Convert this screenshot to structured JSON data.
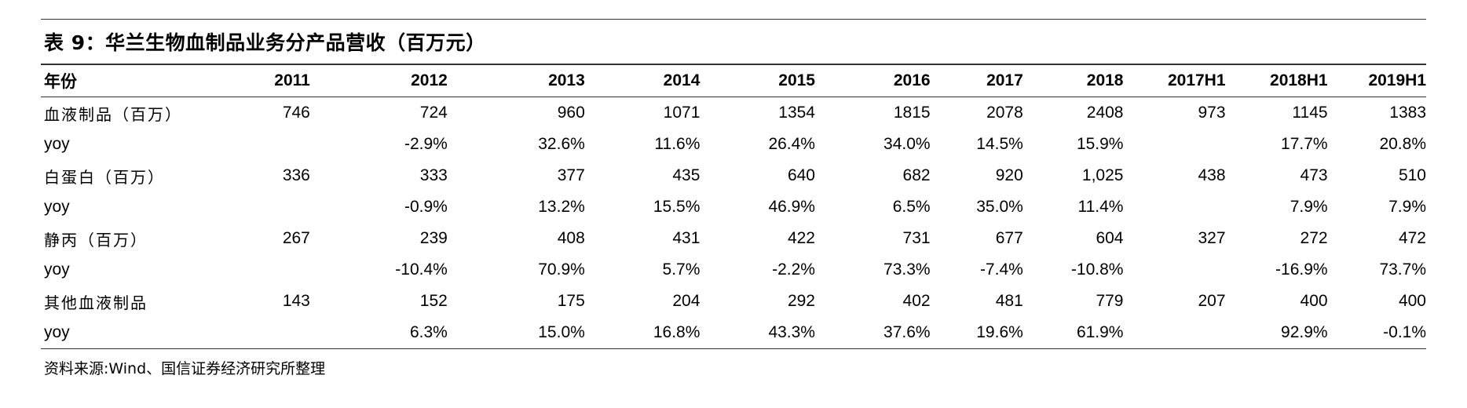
{
  "title": "表 9：华兰生物血制品业务分产品营收（百万元）",
  "table": {
    "header": [
      "年份",
      "2011",
      "2012",
      "2013",
      "2014",
      "2015",
      "2016",
      "2017",
      "2018",
      "2017H1",
      "2018H1",
      "2019H1"
    ],
    "rows": [
      {
        "label": "血液制品（百万）",
        "cells": [
          "746",
          "724",
          "960",
          "1071",
          "1354",
          "1815",
          "2078",
          "2408",
          "973",
          "1145",
          "1383"
        ]
      },
      {
        "label": "yoy",
        "cells": [
          "",
          "-2.9%",
          "32.6%",
          "11.6%",
          "26.4%",
          "34.0%",
          "14.5%",
          "15.9%",
          "",
          "17.7%",
          "20.8%"
        ]
      },
      {
        "label": "白蛋白（百万）",
        "cells": [
          "336",
          "333",
          "377",
          "435",
          "640",
          "682",
          "920",
          "1,025",
          "438",
          "473",
          "510"
        ]
      },
      {
        "label": "yoy",
        "cells": [
          "",
          "-0.9%",
          "13.2%",
          "15.5%",
          "46.9%",
          "6.5%",
          "35.0%",
          "11.4%",
          "",
          "7.9%",
          "7.9%"
        ]
      },
      {
        "label": "静丙（百万）",
        "cells": [
          "267",
          "239",
          "408",
          "431",
          "422",
          "731",
          "677",
          "604",
          "327",
          "272",
          "472"
        ]
      },
      {
        "label": "yoy",
        "cells": [
          "",
          "-10.4%",
          "70.9%",
          "5.7%",
          "-2.2%",
          "73.3%",
          "-7.4%",
          "-10.8%",
          "",
          "-16.9%",
          "73.7%"
        ]
      },
      {
        "label": "其他血液制品",
        "cells": [
          "143",
          "152",
          "175",
          "204",
          "292",
          "402",
          "481",
          "779",
          "207",
          "400",
          "400"
        ]
      },
      {
        "label": "yoy",
        "cells": [
          "",
          "6.3%",
          "15.0%",
          "16.8%",
          "43.3%",
          "37.6%",
          "19.6%",
          "61.9%",
          "",
          "92.9%",
          "-0.1%"
        ]
      }
    ]
  },
  "source": "资料来源:Wind、国信证券经济研究所整理"
}
